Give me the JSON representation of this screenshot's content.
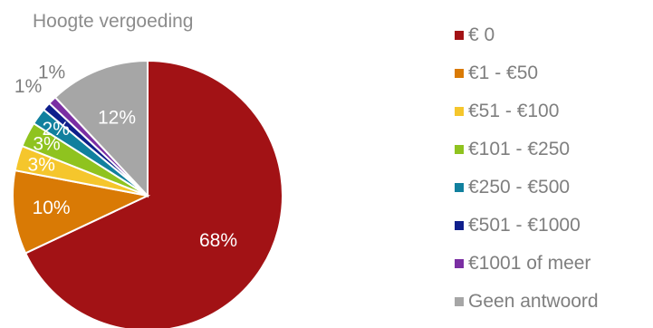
{
  "chart_data": {
    "type": "pie",
    "title": "Hoogte vergoeding",
    "slices": [
      {
        "label": "€ 0",
        "value": 68,
        "display": "68%",
        "color": "#a21215"
      },
      {
        "label": "€1 - €50",
        "value": 10,
        "display": "10%",
        "color": "#d97a05"
      },
      {
        "label": "€51 - €100",
        "value": 3,
        "display": "3%",
        "color": "#f5c62c"
      },
      {
        "label": "€101 - €250",
        "value": 3,
        "display": "3%",
        "color": "#8fc31f"
      },
      {
        "label": "€250 - €500",
        "value": 2,
        "display": "2%",
        "color": "#11809e"
      },
      {
        "label": "€501 - €1000",
        "value": 1,
        "display": "1%",
        "color": "#0f1f8c"
      },
      {
        "label": "€1001 of meer",
        "value": 1,
        "display": "1%",
        "color": "#7b2fa3"
      },
      {
        "label": "Geen antwoord",
        "value": 12,
        "display": "12%",
        "color": "#a6a6a6"
      }
    ],
    "legend_position": "right"
  }
}
